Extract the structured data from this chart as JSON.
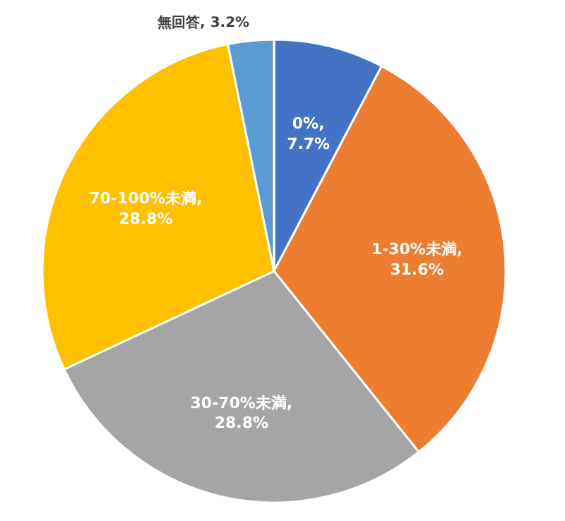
{
  "chart_data": {
    "type": "pie",
    "categories": [
      "0%",
      "1-30%未満",
      "30-70%未満",
      "70-100%未満",
      "無回答"
    ],
    "values": [
      7.7,
      31.6,
      28.8,
      28.8,
      3.2
    ],
    "colors": [
      "#4472c4",
      "#ed7d31",
      "#a5a5a5",
      "#ffc000",
      "#5b9bd5"
    ],
    "value_labels": [
      ", 7.7%",
      ", 31.6%",
      ", 28.8%",
      ", 28.8%",
      ", 3.2%"
    ]
  }
}
